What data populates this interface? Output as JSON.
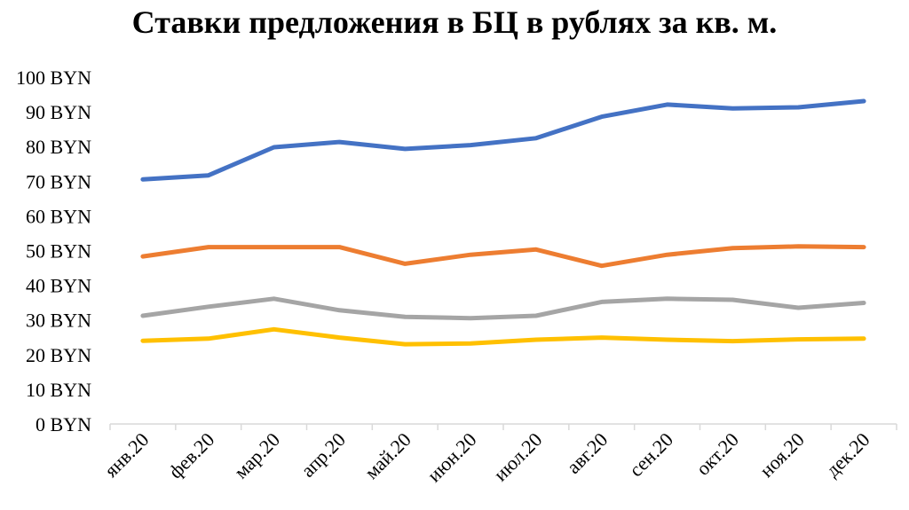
{
  "chart_data": {
    "type": "line",
    "title": "Ставки предложения в БЦ в рублях за кв. м.",
    "xlabel": "",
    "ylabel": "",
    "ylim": [
      0,
      100
    ],
    "y_ticks": [
      "0 BYN",
      "10 BYN",
      "20 BYN",
      "30 BYN",
      "40 BYN",
      "50 BYN",
      "60 BYN",
      "70 BYN",
      "80 BYN",
      "90 BYN",
      "100 BYN"
    ],
    "categories": [
      "янв.20",
      "фев.20",
      "мар.20",
      "апр.20",
      "май.20",
      "июн.20",
      "июл.20",
      "авг.20",
      "сен.20",
      "окт.20",
      "ноя.20",
      "дек.20"
    ],
    "grid": false,
    "legend": "none",
    "series": [
      {
        "color": "#4472C4",
        "values": [
          70.5,
          71.7,
          79.8,
          81.3,
          79.3,
          80.4,
          82.4,
          88.6,
          92.1,
          91.0,
          91.3,
          93.1
        ]
      },
      {
        "color": "#ED7D31",
        "values": [
          48.3,
          51.0,
          51.0,
          51.0,
          46.2,
          48.8,
          50.3,
          45.6,
          48.8,
          50.7,
          51.2,
          51.0
        ]
      },
      {
        "color": "#A5A5A5",
        "values": [
          31.2,
          33.8,
          36.1,
          32.8,
          30.9,
          30.5,
          31.2,
          35.2,
          36.1,
          35.8,
          33.5,
          34.9
        ]
      },
      {
        "color": "#FFC000",
        "values": [
          24.0,
          24.6,
          27.3,
          24.9,
          23.0,
          23.2,
          24.3,
          24.9,
          24.3,
          23.9,
          24.4,
          24.6
        ]
      }
    ]
  }
}
